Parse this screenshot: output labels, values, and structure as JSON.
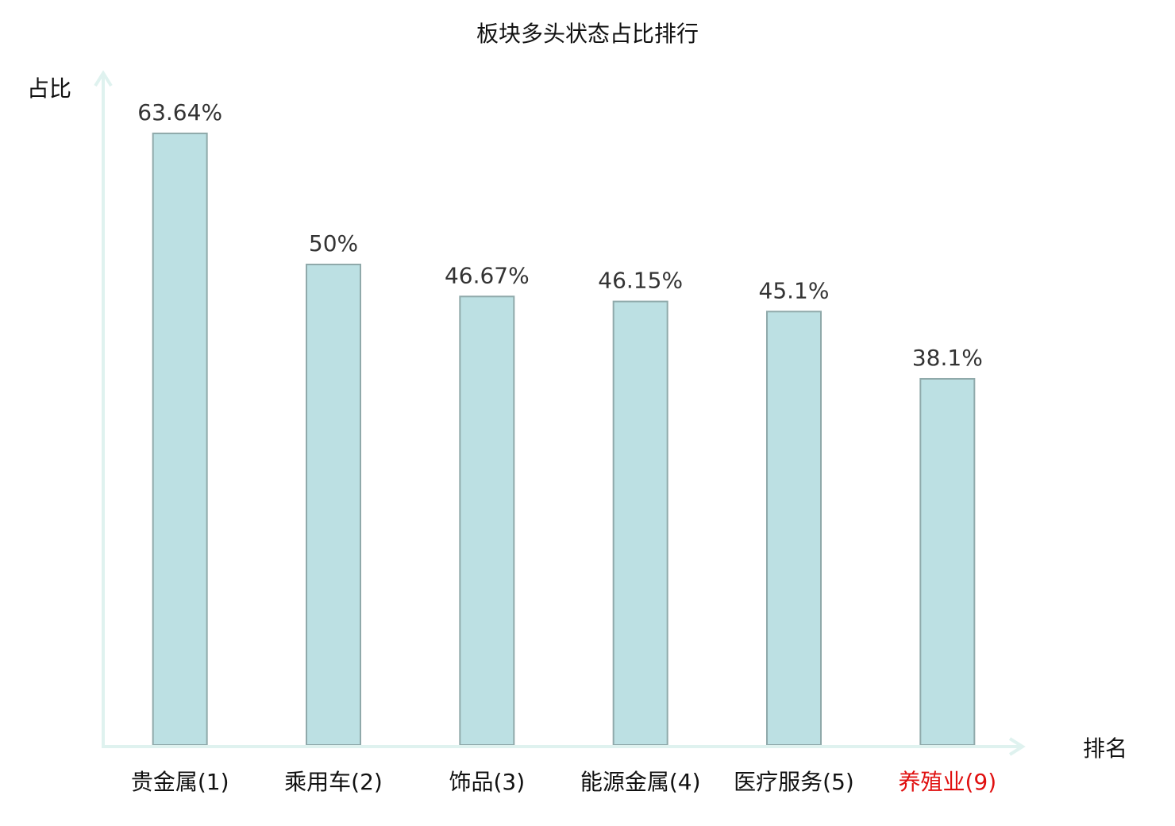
{
  "chart_data": {
    "type": "bar",
    "title": "板块多头状态占比排行",
    "ylabel": "占比",
    "xlabel": "排名",
    "categories": [
      "贵金属(1)",
      "乘用车(2)",
      "饰品(3)",
      "能源金属(4)",
      "医疗服务(5)",
      "养殖业(9)"
    ],
    "values": [
      63.64,
      50,
      46.67,
      46.15,
      45.1,
      38.1
    ],
    "data_labels": [
      "63.64%",
      "50%",
      "46.67%",
      "46.15%",
      "45.1%",
      "38.1%"
    ],
    "highlighted_category": "养殖业(9)",
    "ylim": [
      0,
      70
    ],
    "grid": false,
    "colors": {
      "bar_fill": "#bce0e3",
      "bar_stroke": "#8fa9aa",
      "axis": "#dff2ef",
      "text": "#333333",
      "highlight": "#e01010"
    }
  }
}
